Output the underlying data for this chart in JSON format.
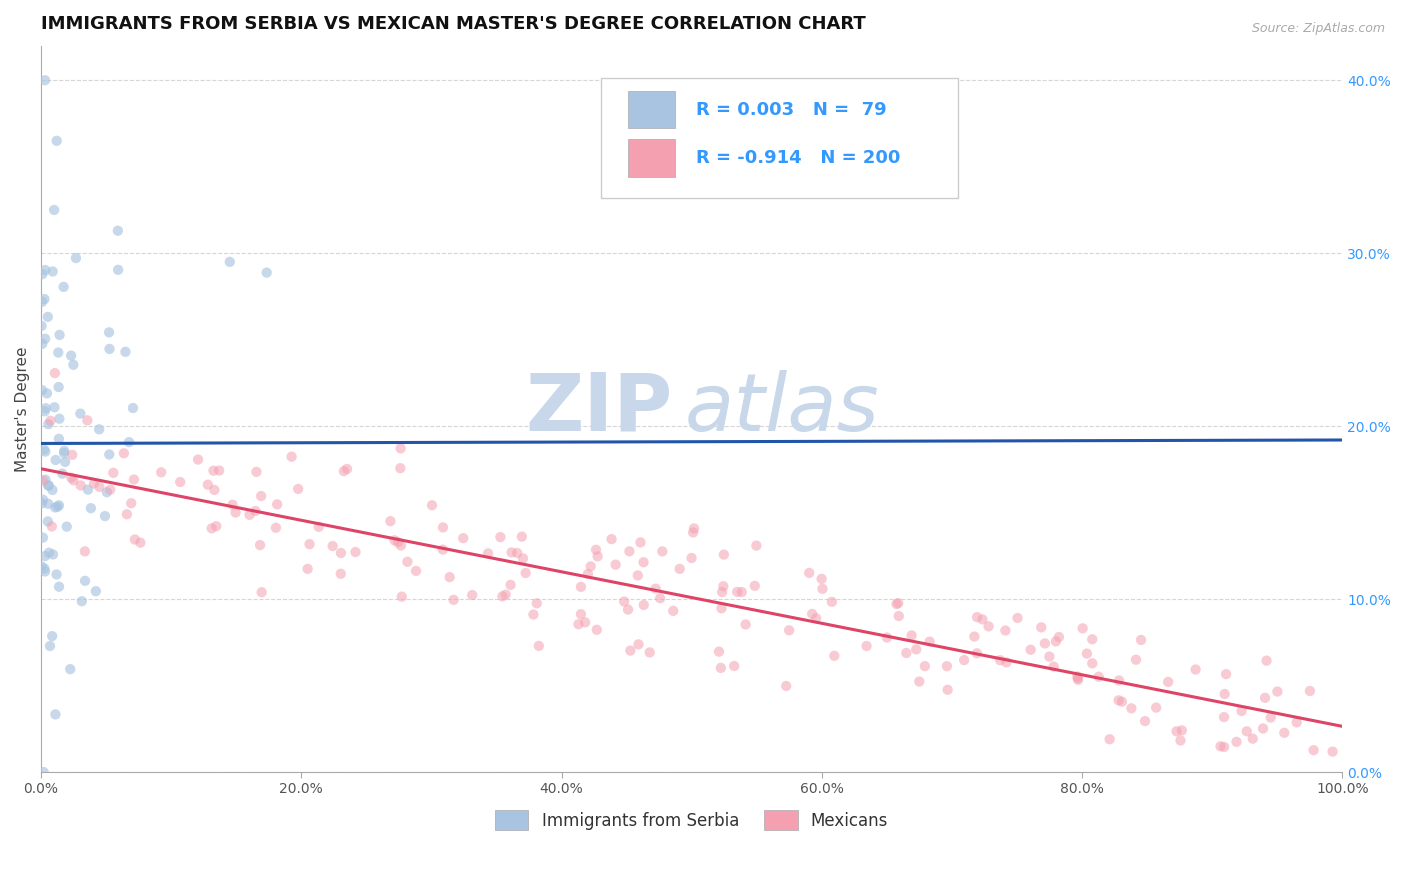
{
  "title": "IMMIGRANTS FROM SERBIA VS MEXICAN MASTER'S DEGREE CORRELATION CHART",
  "source_text": "Source: ZipAtlas.com",
  "ylabel_left": "Master's Degree",
  "serbia_R": 0.003,
  "serbia_N": 79,
  "mexico_R": -0.914,
  "mexico_N": 200,
  "serbia_color": "#A8C4E0",
  "mexico_color": "#F4A0B0",
  "serbia_line_color": "#2255AA",
  "mexico_line_color": "#DD4466",
  "serbia_dot_alpha": 0.65,
  "mexico_dot_alpha": 0.55,
  "background_color": "#FFFFFF",
  "grid_color": "#CCCCCC",
  "watermark_zip": "ZIP",
  "watermark_atlas": "atlas",
  "watermark_color": "#C8D8EA",
  "legend_color": "#3399FF",
  "xlim": [
    0.0,
    1.0
  ],
  "ylim": [
    0.0,
    0.42
  ],
  "x_ticks": [
    0.0,
    0.2,
    0.4,
    0.6,
    0.8,
    1.0
  ],
  "x_tick_labels": [
    "0.0%",
    "20.0%",
    "40.0%",
    "60.0%",
    "80.0%",
    "100.0%"
  ],
  "y_ticks_right": [
    0.0,
    0.1,
    0.2,
    0.3,
    0.4
  ],
  "y_tick_labels_right": [
    "0.0%",
    "10.0%",
    "20.0%",
    "30.0%",
    "40.0%"
  ],
  "legend_labels": [
    "Immigrants from Serbia",
    "Mexicans"
  ],
  "dot_size": 55,
  "title_fontsize": 13,
  "axis_fontsize": 11,
  "legend_fontsize": 12,
  "tick_fontsize": 10
}
